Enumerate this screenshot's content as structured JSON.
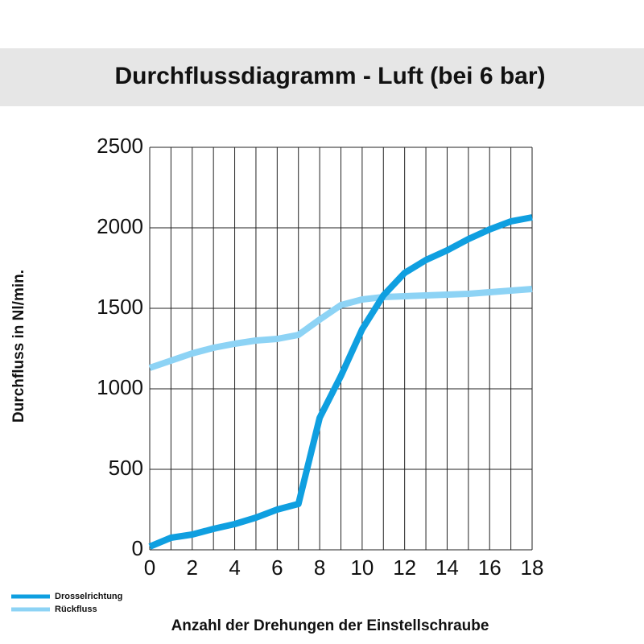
{
  "chart_data": {
    "type": "line",
    "title": "Durchflussdiagramm - Luft (bei 6 bar)",
    "x_label": "Anzahl der Drehungen der Einstellschraube",
    "y_label": "Durchfluss in Nl/min.",
    "x": [
      0,
      1,
      2,
      3,
      4,
      5,
      6,
      7,
      8,
      9,
      10,
      11,
      12,
      13,
      14,
      15,
      16,
      17,
      18
    ],
    "series": [
      {
        "name": "Drosselrichtung",
        "color": "#0f9fe0",
        "values": [
          20,
          75,
          95,
          130,
          160,
          200,
          250,
          285,
          820,
          1080,
          1370,
          1580,
          1720,
          1800,
          1860,
          1930,
          1990,
          2040,
          2065
        ]
      },
      {
        "name": "Rückfluss",
        "color": "#8dd3f5",
        "values": [
          1130,
          1175,
          1220,
          1255,
          1280,
          1300,
          1310,
          1335,
          1430,
          1520,
          1555,
          1570,
          1575,
          1580,
          1585,
          1590,
          1600,
          1610,
          1620
        ]
      }
    ],
    "xlim": [
      0,
      18
    ],
    "xticks": [
      0,
      2,
      4,
      6,
      8,
      10,
      12,
      14,
      16,
      18
    ],
    "xminorticks": [
      1,
      3,
      5,
      7,
      9,
      11,
      13,
      15,
      17
    ],
    "ylim": [
      0,
      2500
    ],
    "yticks": [
      0,
      500,
      1000,
      1500,
      2000,
      2500
    ],
    "grid": true,
    "legend": "bottom-left"
  }
}
